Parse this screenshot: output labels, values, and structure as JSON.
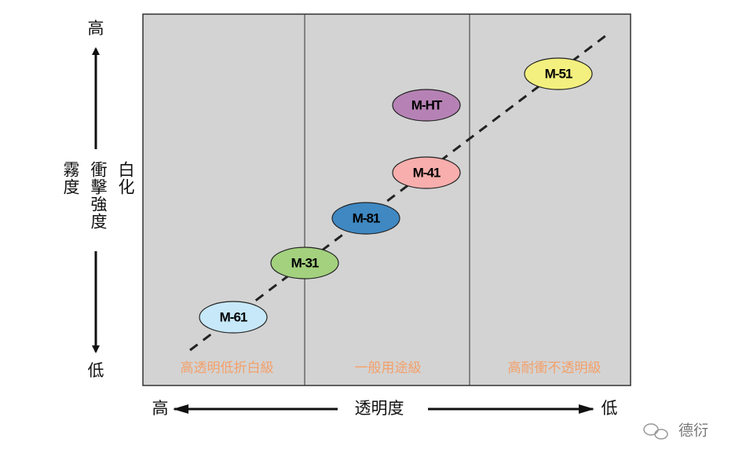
{
  "y_axis": {
    "high": "高",
    "low": "低",
    "labels": [
      "霧度",
      "衝擊強度",
      "白化"
    ]
  },
  "x_axis": {
    "high": "高",
    "label": "透明度",
    "low": "低"
  },
  "zones": [
    "高透明低折白級",
    "一般用途級",
    "高耐衝不透明級"
  ],
  "nodes": [
    {
      "label": "M-61",
      "color": "#c6e8f8"
    },
    {
      "label": "M-31",
      "color": "#a3d17e"
    },
    {
      "label": "M-81",
      "color": "#3f88c2"
    },
    {
      "label": "M-41",
      "color": "#f7aeac"
    },
    {
      "label": "M-HT",
      "color": "#b682b5"
    },
    {
      "label": "M-51",
      "color": "#f4f07f"
    }
  ],
  "watermark": "德衍"
}
